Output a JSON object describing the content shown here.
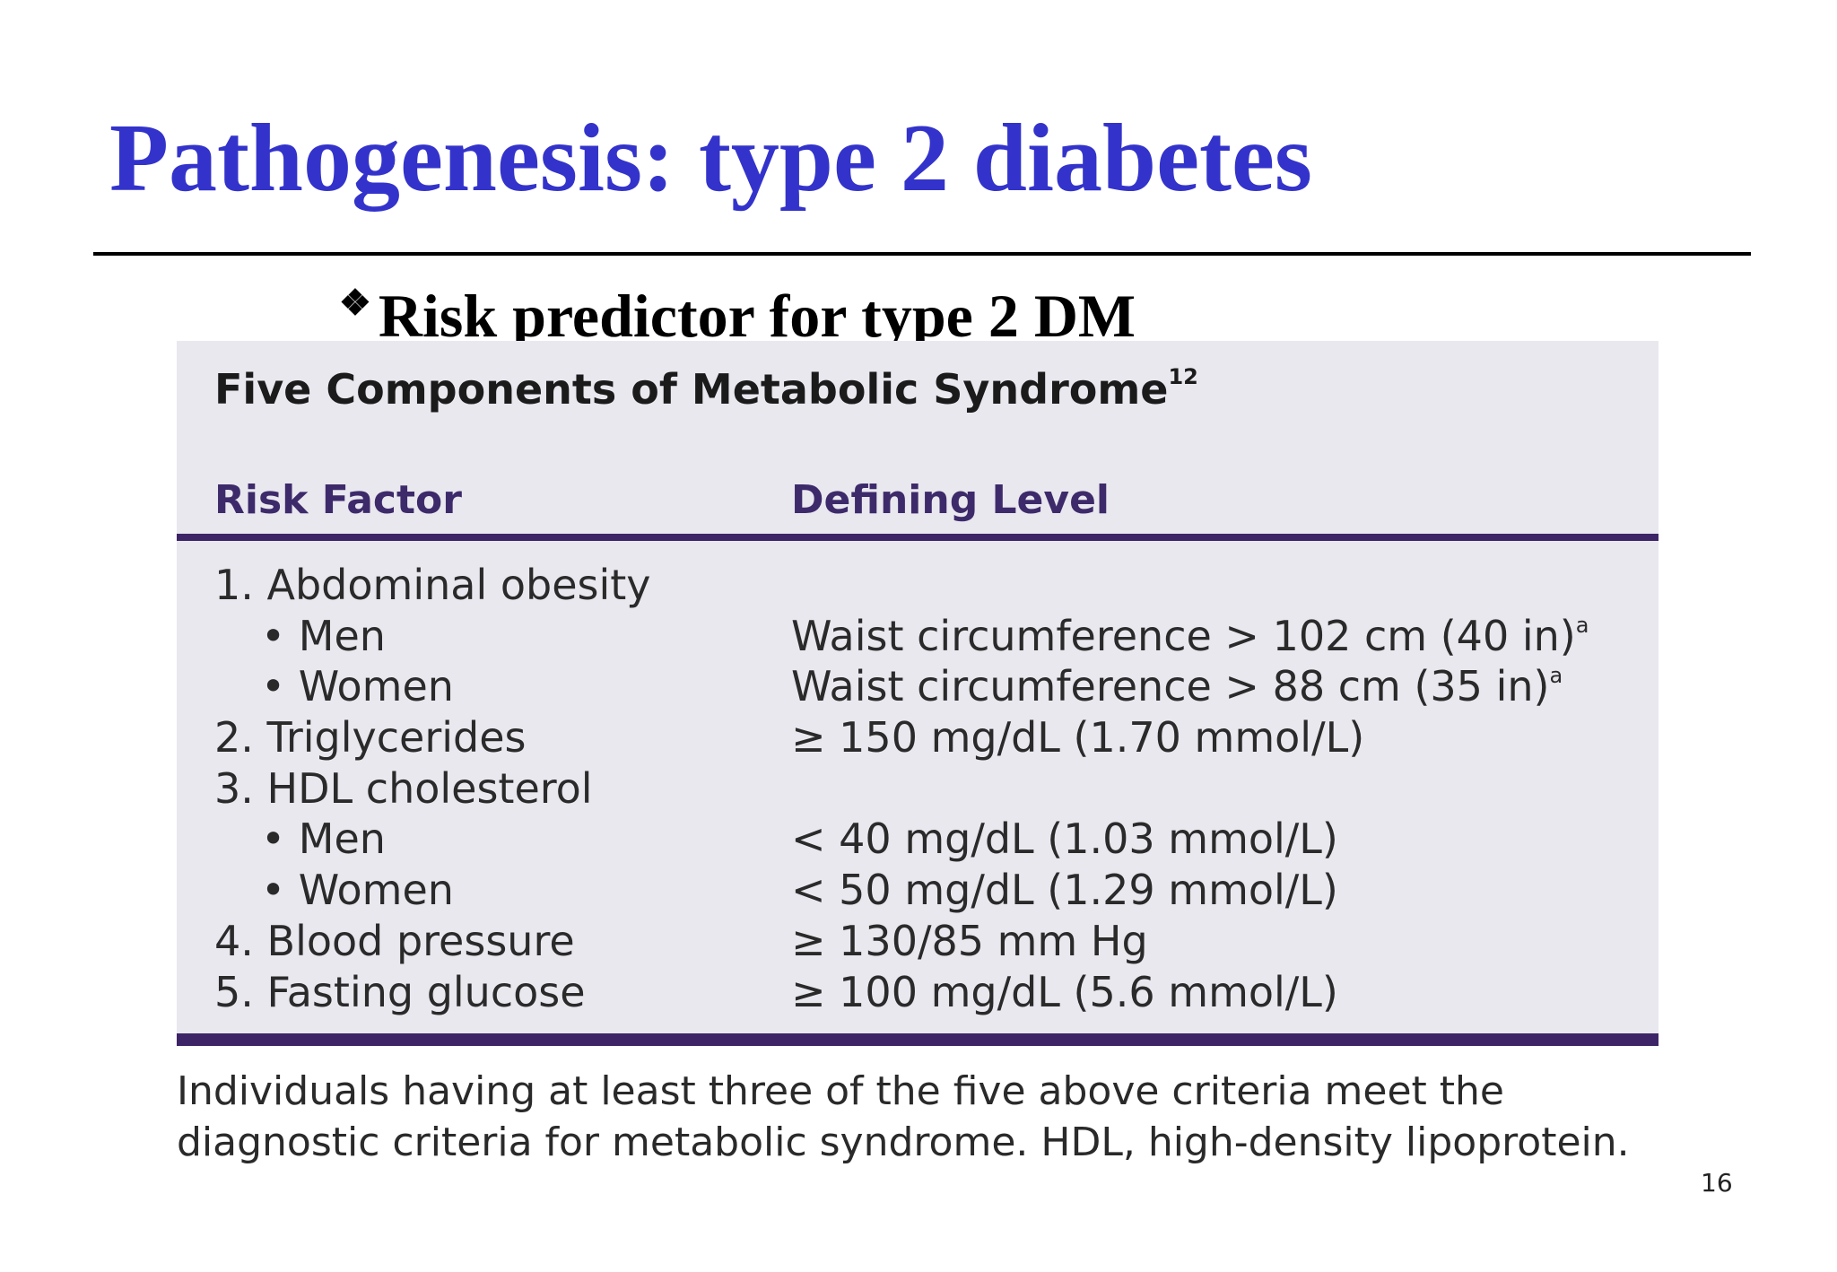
{
  "slide": {
    "title": "Pathogenesis: type 2 diabetes",
    "bullet_symbol": "❖",
    "bullet_text": "Risk predictor for type 2 DM",
    "page_number": "16"
  },
  "table": {
    "heading": "Five Components of Metabolic Syndrome",
    "heading_ref": "12",
    "col_factor": "Risk Factor",
    "col_level": "Defining Level",
    "rows": [
      {
        "factor": "1. Abdominal obesity",
        "level": "",
        "note": ""
      },
      {
        "factor": "• Men",
        "level": "Waist circumference > 102 cm (40 in)",
        "note": "a"
      },
      {
        "factor": "• Women",
        "level": "Waist circumference > 88 cm (35 in)",
        "note": "a"
      },
      {
        "factor": "2. Triglycerides",
        "level": "≥ 150 mg/dL (1.70 mmol/L)",
        "note": ""
      },
      {
        "factor": "3. HDL cholesterol",
        "level": "",
        "note": ""
      },
      {
        "factor": "• Men",
        "level": "< 40 mg/dL (1.03 mmol/L)",
        "note": ""
      },
      {
        "factor": "• Women",
        "level": "< 50 mg/dL (1.29 mmol/L)",
        "note": ""
      },
      {
        "factor": "4. Blood pressure",
        "level": "≥ 130/85 mm Hg",
        "note": ""
      },
      {
        "factor": "5. Fasting glucose",
        "level": "≥ 100 mg/dL (5.6 mmol/L)",
        "note": ""
      }
    ],
    "footnote": "Individuals having at least three of the five above criteria meet the diagnostic criteria for metabolic syndrome. HDL, high-density lipoprotein."
  }
}
